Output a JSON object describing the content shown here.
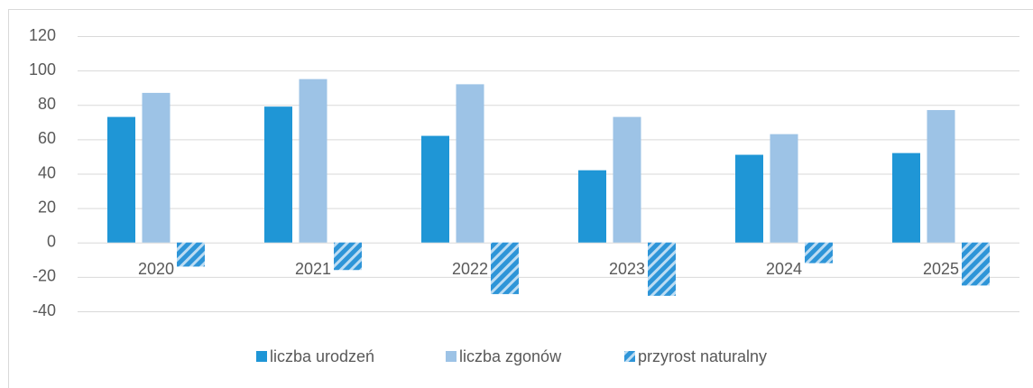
{
  "chart_data": {
    "type": "bar",
    "categories": [
      "2020",
      "2021",
      "2022",
      "2023",
      "2024",
      "2025"
    ],
    "series": [
      {
        "name": "liczba urodzeń",
        "color": "#1f96d6",
        "values": [
          73,
          79,
          62,
          42,
          51,
          52
        ]
      },
      {
        "name": "liczba zgonów",
        "color": "#9dc3e6",
        "values": [
          87,
          95,
          92,
          73,
          63,
          77
        ]
      },
      {
        "name": "przyrost naturalny",
        "color": "#2e95d8",
        "hatch": true,
        "values": [
          -14,
          -16,
          -30,
          -31,
          -12,
          -25
        ]
      }
    ],
    "ylim": [
      -40,
      120
    ],
    "yticks": [
      -40,
      -20,
      0,
      20,
      40,
      60,
      80,
      100,
      120
    ],
    "grid": true,
    "legend": "bottom"
  }
}
